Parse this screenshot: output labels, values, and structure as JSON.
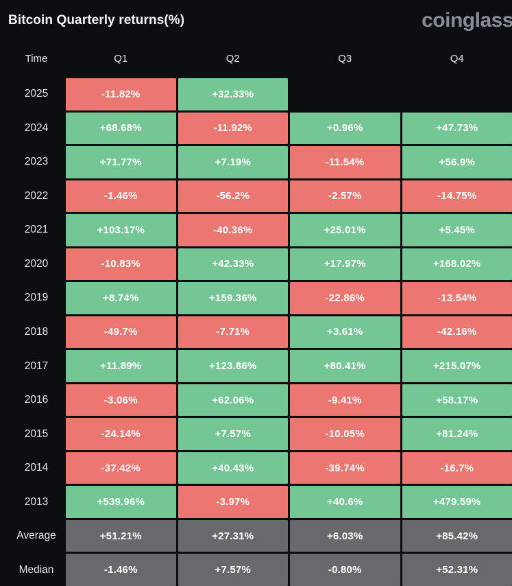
{
  "header": {
    "title": "Bitcoin Quarterly returns(%)",
    "logo": "coinglass"
  },
  "table": {
    "columns": [
      "Time",
      "Q1",
      "Q2",
      "Q3",
      "Q4"
    ],
    "rows": [
      {
        "label": "2025",
        "type": "year",
        "values": [
          "-11.82%",
          "+32.33%",
          "",
          ""
        ]
      },
      {
        "label": "2024",
        "type": "year",
        "values": [
          "+68.68%",
          "-11.92%",
          "+0.96%",
          "+47.73%"
        ]
      },
      {
        "label": "2023",
        "type": "year",
        "values": [
          "+71.77%",
          "+7.19%",
          "-11.54%",
          "+56.9%"
        ]
      },
      {
        "label": "2022",
        "type": "year",
        "values": [
          "-1.46%",
          "-56.2%",
          "-2.57%",
          "-14.75%"
        ]
      },
      {
        "label": "2021",
        "type": "year",
        "values": [
          "+103.17%",
          "-40.36%",
          "+25.01%",
          "+5.45%"
        ]
      },
      {
        "label": "2020",
        "type": "year",
        "values": [
          "-10.83%",
          "+42.33%",
          "+17.97%",
          "+168.02%"
        ]
      },
      {
        "label": "2019",
        "type": "year",
        "values": [
          "+8.74%",
          "+159.36%",
          "-22.86%",
          "-13.54%"
        ]
      },
      {
        "label": "2018",
        "type": "year",
        "values": [
          "-49.7%",
          "-7.71%",
          "+3.61%",
          "-42.16%"
        ]
      },
      {
        "label": "2017",
        "type": "year",
        "values": [
          "+11.89%",
          "+123.86%",
          "+80.41%",
          "+215.07%"
        ]
      },
      {
        "label": "2016",
        "type": "year",
        "values": [
          "-3.06%",
          "+62.06%",
          "-9.41%",
          "+58.17%"
        ]
      },
      {
        "label": "2015",
        "type": "year",
        "values": [
          "-24.14%",
          "+7.57%",
          "-10.05%",
          "+81.24%"
        ]
      },
      {
        "label": "2014",
        "type": "year",
        "values": [
          "-37.42%",
          "+40.43%",
          "-39.74%",
          "-16.7%"
        ]
      },
      {
        "label": "2013",
        "type": "year",
        "values": [
          "+539.96%",
          "-3.97%",
          "+40.6%",
          "+479.59%"
        ]
      },
      {
        "label": "Average",
        "type": "summary",
        "values": [
          "+51.21%",
          "+27.31%",
          "+6.03%",
          "+85.42%"
        ]
      },
      {
        "label": "Median",
        "type": "summary",
        "values": [
          "-1.46%",
          "+7.57%",
          "-0.80%",
          "+52.31%"
        ]
      }
    ]
  },
  "colors": {
    "positive": "#74c794",
    "negative": "#eb7770",
    "summary": "#69696d",
    "background": "#0c0e12",
    "cell_text": "#ffffff",
    "label_text": "#e4e6ea",
    "logo_text": "#878d97"
  },
  "chart_data": {
    "type": "heatmap",
    "title": "Bitcoin Quarterly returns(%)",
    "columns": [
      "Q1",
      "Q2",
      "Q3",
      "Q4"
    ],
    "rows": [
      "2025",
      "2024",
      "2023",
      "2022",
      "2021",
      "2020",
      "2019",
      "2018",
      "2017",
      "2016",
      "2015",
      "2014",
      "2013",
      "Average",
      "Median"
    ],
    "values": [
      [
        -11.82,
        32.33,
        null,
        null
      ],
      [
        68.68,
        -11.92,
        0.96,
        47.73
      ],
      [
        71.77,
        7.19,
        -11.54,
        56.9
      ],
      [
        -1.46,
        -56.2,
        -2.57,
        -14.75
      ],
      [
        103.17,
        -40.36,
        25.01,
        5.45
      ],
      [
        -10.83,
        42.33,
        17.97,
        168.02
      ],
      [
        8.74,
        159.36,
        -22.86,
        -13.54
      ],
      [
        -49.7,
        -7.71,
        3.61,
        -42.16
      ],
      [
        11.89,
        123.86,
        80.41,
        215.07
      ],
      [
        -3.06,
        62.06,
        -9.41,
        58.17
      ],
      [
        -24.14,
        7.57,
        -10.05,
        81.24
      ],
      [
        -37.42,
        40.43,
        -39.74,
        -16.7
      ],
      [
        539.96,
        -3.97,
        40.6,
        479.59
      ],
      [
        51.21,
        27.31,
        6.03,
        85.42
      ],
      [
        -1.46,
        7.57,
        -0.8,
        52.31
      ]
    ],
    "legend": "green = positive return, red = negative return, gray = summary rows (Average/Median)",
    "unit": "%"
  }
}
